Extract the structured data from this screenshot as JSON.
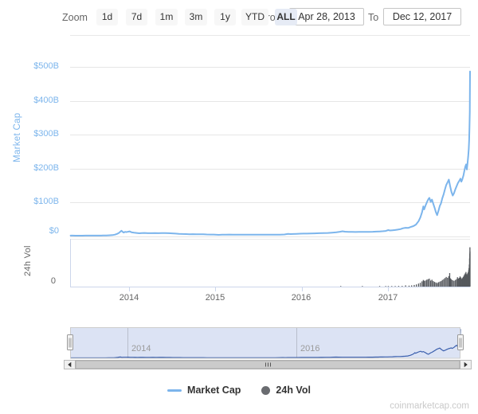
{
  "range_selector": {
    "zoom_label": "Zoom",
    "buttons": [
      {
        "label": "1d",
        "selected": false
      },
      {
        "label": "7d",
        "selected": false
      },
      {
        "label": "1m",
        "selected": false
      },
      {
        "label": "3m",
        "selected": false
      },
      {
        "label": "1y",
        "selected": false
      },
      {
        "label": "YTD",
        "selected": false
      },
      {
        "label": "ALL",
        "selected": true
      }
    ],
    "from_label": "From",
    "from_value": "Apr 28, 2013",
    "to_label": "To",
    "to_value": "Dec 12, 2017"
  },
  "axes": {
    "market_cap": {
      "title": "Market Cap",
      "ticks": [
        "$500B",
        "$400B",
        "$300B",
        "$200B",
        "$100B",
        "$0"
      ]
    },
    "volume": {
      "title": "24h Vol",
      "ticks": [
        "0"
      ]
    },
    "x": {
      "ticks": [
        "2014",
        "2015",
        "2016",
        "2017"
      ]
    }
  },
  "navigator": {
    "labels": [
      "2014",
      "2016"
    ]
  },
  "legend": {
    "items": [
      {
        "label": "Market Cap",
        "swatch": "line",
        "color": "#7cb5ec"
      },
      {
        "label": "24h Vol",
        "swatch": "circle",
        "color": "#6a6c70"
      }
    ]
  },
  "watermark": "coinmarketcap.com",
  "colors": {
    "series_line": "#7cb5ec",
    "volume_bar": "#55585d",
    "grid": "#e6e6e6",
    "axis_line": "#ccd6eb",
    "nav_mask": "#dce3f4",
    "nav_line": "#3a5fad",
    "nav_outline": "#cccccc",
    "nav_grid": "#b9bfcc",
    "scroll_track": "#f2f2f2",
    "scroll_thumb": "#cbcbcb",
    "scroll_border": "#bbbbbb",
    "button_bg": "#f7f7f7",
    "button_selected_bg": "#e6ebf5",
    "y_label_blue": "#7cb5ec",
    "label_gray": "#666666"
  },
  "chart_data": {
    "type": "line",
    "title": "",
    "x_range_dates": [
      "2013-04-28",
      "2017-12-12"
    ],
    "x_unit": "decimal-year",
    "x_tick_years": [
      2014,
      2015,
      2016,
      2017
    ],
    "grid": true,
    "legend_position": "bottom-center",
    "series": [
      {
        "name": "Market Cap",
        "type": "line",
        "unit": "USD billions",
        "ylim": [
          0,
          500
        ],
        "yticks": [
          0,
          100,
          200,
          300,
          400,
          500
        ],
        "points": [
          [
            2013.326,
            1.5
          ],
          [
            2013.35,
            1.45
          ],
          [
            2013.38,
            1.2
          ],
          [
            2013.42,
            1.1
          ],
          [
            2013.46,
            1.15
          ],
          [
            2013.5,
            1.3
          ],
          [
            2013.54,
            1.4
          ],
          [
            2013.58,
            1.3
          ],
          [
            2013.62,
            1.35
          ],
          [
            2013.66,
            1.45
          ],
          [
            2013.7,
            1.55
          ],
          [
            2013.74,
            1.9
          ],
          [
            2013.78,
            2.3
          ],
          [
            2013.81,
            2.9
          ],
          [
            2013.84,
            4.2
          ],
          [
            2013.865,
            6.5
          ],
          [
            2013.885,
            9.5
          ],
          [
            2013.9,
            12.8
          ],
          [
            2013.915,
            15.8
          ],
          [
            2013.925,
            13.2
          ],
          [
            2013.94,
            10.4
          ],
          [
            2013.955,
            12.6
          ],
          [
            2013.97,
            11.8
          ],
          [
            2013.985,
            12.4
          ],
          [
            2014.01,
            13.9
          ],
          [
            2014.03,
            11.2
          ],
          [
            2014.06,
            10.1
          ],
          [
            2014.09,
            9.2
          ],
          [
            2014.12,
            8.3
          ],
          [
            2014.15,
            8.8
          ],
          [
            2014.18,
            9.2
          ],
          [
            2014.22,
            8.4
          ],
          [
            2014.26,
            8.6
          ],
          [
            2014.3,
            8.9
          ],
          [
            2014.34,
            8.5
          ],
          [
            2014.38,
            8.8
          ],
          [
            2014.42,
            8.9
          ],
          [
            2014.46,
            8.4
          ],
          [
            2014.5,
            7.9
          ],
          [
            2014.54,
            7.3
          ],
          [
            2014.58,
            6.7
          ],
          [
            2014.62,
            6.2
          ],
          [
            2014.66,
            5.8
          ],
          [
            2014.7,
            5.4
          ],
          [
            2014.74,
            5.6
          ],
          [
            2014.78,
            5.1
          ],
          [
            2014.82,
            5.3
          ],
          [
            2014.86,
            5.1
          ],
          [
            2014.9,
            4.8
          ],
          [
            2014.94,
            4.5
          ],
          [
            2014.98,
            4.4
          ],
          [
            2015.04,
            3.5
          ],
          [
            2015.08,
            3.9
          ],
          [
            2015.12,
            4.3
          ],
          [
            2015.16,
            4.4
          ],
          [
            2015.2,
            4.2
          ],
          [
            2015.25,
            4.1
          ],
          [
            2015.3,
            4.0
          ],
          [
            2015.35,
            3.9
          ],
          [
            2015.4,
            4.0
          ],
          [
            2015.45,
            4.1
          ],
          [
            2015.5,
            4.1
          ],
          [
            2015.55,
            3.9
          ],
          [
            2015.6,
            4.0
          ],
          [
            2015.65,
            4.2
          ],
          [
            2015.7,
            4.1
          ],
          [
            2015.75,
            4.3
          ],
          [
            2015.8,
            4.8
          ],
          [
            2015.84,
            6.4
          ],
          [
            2015.87,
            5.8
          ],
          [
            2015.9,
            6.1
          ],
          [
            2015.94,
            6.6
          ],
          [
            2015.98,
            7.0
          ],
          [
            2016.02,
            7.2
          ],
          [
            2016.06,
            7.4
          ],
          [
            2016.1,
            7.7
          ],
          [
            2016.15,
            8.1
          ],
          [
            2016.2,
            8.5
          ],
          [
            2016.25,
            8.7
          ],
          [
            2016.3,
            9.1
          ],
          [
            2016.35,
            10.1
          ],
          [
            2016.4,
            11.2
          ],
          [
            2016.44,
            12.8
          ],
          [
            2016.47,
            14.2
          ],
          [
            2016.5,
            13.0
          ],
          [
            2016.54,
            12.4
          ],
          [
            2016.58,
            12.2
          ],
          [
            2016.62,
            12.0
          ],
          [
            2016.66,
            12.3
          ],
          [
            2016.7,
            12.5
          ],
          [
            2016.74,
            12.2
          ],
          [
            2016.78,
            12.4
          ],
          [
            2016.82,
            12.7
          ],
          [
            2016.86,
            13.1
          ],
          [
            2016.9,
            13.7
          ],
          [
            2016.94,
            14.3
          ],
          [
            2016.97,
            15.2
          ],
          [
            2017.0,
            17.7
          ],
          [
            2017.02,
            16.6
          ],
          [
            2017.05,
            17.3
          ],
          [
            2017.08,
            18.0
          ],
          [
            2017.11,
            19.0
          ],
          [
            2017.14,
            20.5
          ],
          [
            2017.17,
            23.0
          ],
          [
            2017.2,
            24.6
          ],
          [
            2017.23,
            24.1
          ],
          [
            2017.26,
            26.8
          ],
          [
            2017.29,
            29.5
          ],
          [
            2017.32,
            34.0
          ],
          [
            2017.35,
            44.0
          ],
          [
            2017.37,
            55.0
          ],
          [
            2017.39,
            70.0
          ],
          [
            2017.405,
            88.0
          ],
          [
            2017.415,
            79.0
          ],
          [
            2017.43,
            90.0
          ],
          [
            2017.45,
            102.0
          ],
          [
            2017.465,
            110.0
          ],
          [
            2017.475,
            113.0
          ],
          [
            2017.49,
            101.0
          ],
          [
            2017.505,
            108.0
          ],
          [
            2017.52,
            96.0
          ],
          [
            2017.535,
            84.0
          ],
          [
            2017.55,
            71.0
          ],
          [
            2017.565,
            62.0
          ],
          [
            2017.58,
            75.0
          ],
          [
            2017.595,
            89.0
          ],
          [
            2017.61,
            97.0
          ],
          [
            2017.625,
            112.0
          ],
          [
            2017.64,
            124.0
          ],
          [
            2017.655,
            138.0
          ],
          [
            2017.67,
            151.0
          ],
          [
            2017.685,
            159.0
          ],
          [
            2017.7,
            167.0
          ],
          [
            2017.715,
            148.0
          ],
          [
            2017.73,
            131.0
          ],
          [
            2017.745,
            120.0
          ],
          [
            2017.76,
            127.0
          ],
          [
            2017.775,
            138.0
          ],
          [
            2017.79,
            148.0
          ],
          [
            2017.805,
            157.0
          ],
          [
            2017.82,
            163.0
          ],
          [
            2017.835,
            170.0
          ],
          [
            2017.845,
            161.0
          ],
          [
            2017.855,
            167.0
          ],
          [
            2017.87,
            180.0
          ],
          [
            2017.88,
            193.0
          ],
          [
            2017.89,
            205.0
          ],
          [
            2017.9,
            212.0
          ],
          [
            2017.908,
            197.0
          ],
          [
            2017.916,
            214.0
          ],
          [
            2017.924,
            236.0
          ],
          [
            2017.93,
            258.0
          ],
          [
            2017.935,
            285.0
          ],
          [
            2017.939,
            322.0
          ],
          [
            2017.942,
            368.0
          ],
          [
            2017.9435,
            412.0
          ],
          [
            2017.945,
            487.0
          ]
        ]
      },
      {
        "name": "24h Vol",
        "type": "bar",
        "unit": "USD billions",
        "ylim": [
          0,
          30
        ],
        "yticks": [
          0
        ],
        "points": [
          [
            2016.45,
            0.15
          ],
          [
            2016.7,
            0.12
          ],
          [
            2016.9,
            0.2
          ],
          [
            2016.97,
            0.25
          ],
          [
            2017.0,
            0.35
          ],
          [
            2017.04,
            0.3
          ],
          [
            2017.08,
            0.4
          ],
          [
            2017.12,
            0.5
          ],
          [
            2017.16,
            0.5
          ],
          [
            2017.2,
            0.9
          ],
          [
            2017.24,
            0.7
          ],
          [
            2017.27,
            0.9
          ],
          [
            2017.3,
            1.2
          ],
          [
            2017.325,
            1.6
          ],
          [
            2017.35,
            2.2
          ],
          [
            2017.37,
            2.8
          ],
          [
            2017.39,
            3.8
          ],
          [
            2017.405,
            4.8
          ],
          [
            2017.415,
            4.2
          ],
          [
            2017.43,
            4.4
          ],
          [
            2017.445,
            5.0
          ],
          [
            2017.46,
            5.4
          ],
          [
            2017.475,
            5.8
          ],
          [
            2017.49,
            4.4
          ],
          [
            2017.505,
            5.0
          ],
          [
            2017.52,
            4.0
          ],
          [
            2017.535,
            3.4
          ],
          [
            2017.55,
            3.0
          ],
          [
            2017.565,
            2.6
          ],
          [
            2017.58,
            3.2
          ],
          [
            2017.595,
            3.6
          ],
          [
            2017.61,
            4.0
          ],
          [
            2017.625,
            4.8
          ],
          [
            2017.64,
            5.4
          ],
          [
            2017.655,
            6.2
          ],
          [
            2017.67,
            7.0
          ],
          [
            2017.685,
            6.4
          ],
          [
            2017.7,
            7.6
          ],
          [
            2017.71,
            9.8
          ],
          [
            2017.72,
            6.0
          ],
          [
            2017.73,
            5.2
          ],
          [
            2017.745,
            4.6
          ],
          [
            2017.76,
            4.2
          ],
          [
            2017.775,
            4.8
          ],
          [
            2017.79,
            5.4
          ],
          [
            2017.8,
            6.8
          ],
          [
            2017.81,
            5.8
          ],
          [
            2017.82,
            6.4
          ],
          [
            2017.83,
            7.4
          ],
          [
            2017.84,
            6.6
          ],
          [
            2017.85,
            5.6
          ],
          [
            2017.858,
            6.2
          ],
          [
            2017.866,
            7.0
          ],
          [
            2017.874,
            7.8
          ],
          [
            2017.882,
            8.8
          ],
          [
            2017.89,
            9.6
          ],
          [
            2017.898,
            10.6
          ],
          [
            2017.906,
            9.0
          ],
          [
            2017.912,
            8.2
          ],
          [
            2017.918,
            9.6
          ],
          [
            2017.924,
            10.4
          ],
          [
            2017.929,
            11.8
          ],
          [
            2017.933,
            13.4
          ],
          [
            2017.937,
            16.0
          ],
          [
            2017.94,
            20.5
          ],
          [
            2017.9425,
            24.0
          ],
          [
            2017.944,
            28.5
          ],
          [
            2017.945,
            25.5
          ]
        ]
      }
    ]
  }
}
